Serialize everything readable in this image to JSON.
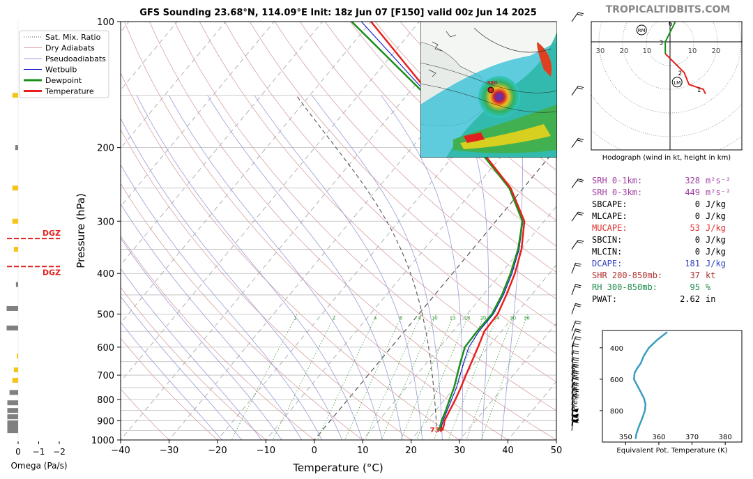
{
  "header": {
    "title": "GFS Sounding 23.68°N, 114.09°E Init: 18z Jun 07 [F150] valid 00z Jun 14 2025",
    "brand": "TROPICALTIDBITS.COM"
  },
  "legend": {
    "items": [
      {
        "label": "Sat. Mix. Ratio",
        "color": "#555555",
        "style": "dotted"
      },
      {
        "label": "Dry Adiabats",
        "color": "#d9a0a0",
        "style": "solid"
      },
      {
        "label": "Pseudoadiabats",
        "color": "#9a9ad8",
        "style": "solid"
      },
      {
        "label": "Wetbulb",
        "color": "#0000cc",
        "style": "solid"
      },
      {
        "label": "Dewpoint",
        "color": "#1a8f1a",
        "style": "bold"
      },
      {
        "label": "Temperature",
        "color": "#e8201c",
        "style": "bold"
      }
    ]
  },
  "colors": {
    "temperature": "#e8201c",
    "dewpoint": "#1a8f1a",
    "wetbulb": "#0000cc",
    "dry_adiabat": "#d9a0a0",
    "moist_adiabat": "#9a9ad8",
    "mixing_ratio": "#3a9a3a",
    "isotherm": "#999999",
    "theta_e": "#3a9cbf",
    "srh": "#a040a0",
    "mucape": "#e03030",
    "dcape": "#3040c0",
    "shear": "#b03030",
    "rh": "#1a8a4a",
    "omega_bar": "#808080",
    "omega_highlight": "#f5c518"
  },
  "surface_temp_label": "73F",
  "dgz_label": "DGZ",
  "map_inset": {
    "marker_label": "980"
  },
  "chart_data": [
    {
      "type": "line",
      "name": "skew-t",
      "xlabel": "Temperature (°C)",
      "ylabel": "Pressure (hPa)",
      "xlim": [
        -40,
        50
      ],
      "ylim": [
        1000,
        100
      ],
      "y_scale": "log",
      "x_ticks": [
        -40,
        -30,
        -20,
        -10,
        0,
        10,
        20,
        30,
        40,
        50
      ],
      "y_ticks": [
        100,
        200,
        300,
        400,
        500,
        600,
        700,
        800,
        900,
        1000
      ],
      "mixing_ratio_labels": [
        1,
        2,
        4,
        6,
        8,
        10,
        13,
        16,
        20,
        24,
        30,
        36
      ],
      "series": [
        {
          "name": "Temperature",
          "p": [
            950,
            925,
            900,
            850,
            800,
            750,
            700,
            650,
            600,
            550,
            500,
            450,
            400,
            350,
            300,
            250,
            200,
            150,
            100
          ],
          "t": [
            24.8,
            24.3,
            23.6,
            22.9,
            22.2,
            21.3,
            20.2,
            19.1,
            17.9,
            16.5,
            16.3,
            14.8,
            12.9,
            10.1,
            5.9,
            -2.6,
            -16.1,
            -35,
            -60
          ]
        },
        {
          "name": "Dewpoint",
          "p": [
            950,
            925,
            900,
            850,
            800,
            750,
            700,
            650,
            600,
            550,
            500,
            450,
            400,
            350,
            300,
            250,
            200,
            150,
            100
          ],
          "t": [
            24.3,
            23.6,
            23.0,
            22.1,
            21.0,
            19.9,
            18.4,
            16.8,
            15.2,
            15.0,
            15.1,
            13.9,
            12.0,
            9.4,
            5.5,
            -2.9,
            -16.5,
            -36,
            -64
          ]
        },
        {
          "name": "Wetbulb",
          "p": [
            950,
            925,
            900,
            850,
            800,
            750,
            700,
            650,
            600,
            550,
            500,
            450,
            400,
            350,
            300,
            250,
            200,
            150,
            100
          ],
          "t": [
            24.5,
            23.9,
            23.3,
            22.4,
            21.4,
            20.4,
            19.0,
            17.5,
            16.0,
            15.4,
            15.4,
            14.2,
            12.3,
            9.6,
            5.6,
            -2.8,
            -16.3,
            -35.5,
            -62
          ]
        }
      ],
      "dgz": [
        330,
        385
      ]
    },
    {
      "type": "line",
      "name": "hodograph",
      "caption": "Hodograph (wind in kt, height in km)",
      "range_labels": [
        30,
        20,
        10,
        10,
        20
      ],
      "u": [
        15,
        14,
        8,
        6,
        -2,
        -2,
        1,
        2,
        2,
        0,
        -4,
        -10
      ],
      "v": [
        -22,
        -20,
        -18,
        -13,
        -5,
        0,
        6,
        8,
        12,
        14,
        18,
        24
      ],
      "height_labels": [
        "1",
        "2",
        "3",
        "6",
        "9"
      ],
      "storm_labels": [
        "RM",
        "LM"
      ]
    },
    {
      "type": "line",
      "name": "theta-e",
      "xlabel": "Equivalent Pot. Temperature (K)",
      "ylabel": "Pressure (hPa)",
      "x_ticks": [
        350,
        360,
        370,
        380
      ],
      "y_ticks": [
        400,
        600,
        800
      ],
      "theta_e": [
        362.5,
        359.5,
        357,
        355.5,
        354.5,
        353.5,
        352.7,
        352.5,
        353.5,
        354.5,
        355.5,
        356,
        355.8,
        355,
        354,
        353.2,
        353
      ],
      "p": [
        300,
        350,
        400,
        450,
        500,
        530,
        560,
        600,
        640,
        680,
        720,
        760,
        800,
        850,
        900,
        950,
        980
      ]
    },
    {
      "type": "bar",
      "name": "omega",
      "xlabel": "Omega (Pa/s)",
      "x_ticks": [
        "0",
        "−1",
        "−2"
      ],
      "p": [
        150,
        200,
        250,
        300,
        350,
        425,
        485,
        540,
        630,
        680,
        720,
        770,
        815,
        850,
        880,
        910,
        930,
        950
      ],
      "omega": [
        0.4,
        0.2,
        0.4,
        0.4,
        0.3,
        0.15,
        0.8,
        0.8,
        0.05,
        0.3,
        0.4,
        0.6,
        0.75,
        0.75,
        0.75,
        0.75,
        0.75,
        0.75
      ],
      "highlight": [
        true,
        false,
        true,
        true,
        true,
        false,
        false,
        false,
        true,
        true,
        true,
        false,
        false,
        false,
        false,
        false,
        false,
        false
      ]
    }
  ],
  "indices": [
    {
      "label": "SRH 0-1km:",
      "value": "328",
      "unit": "m²s⁻²",
      "color": "#a040a0"
    },
    {
      "label": "SRH 0-3km:",
      "value": "449",
      "unit": "m²s⁻²",
      "color": "#a040a0"
    },
    {
      "label": "SBCAPE:",
      "value": "0",
      "unit": "J/kg",
      "color": "#000000"
    },
    {
      "label": "MLCAPE:",
      "value": "0",
      "unit": "J/kg",
      "color": "#000000"
    },
    {
      "label": "MUCAPE:",
      "value": "53",
      "unit": "J/kg",
      "color": "#e03030"
    },
    {
      "label": "SBCIN:",
      "value": "0",
      "unit": "J/kg",
      "color": "#000000"
    },
    {
      "label": "MLCIN:",
      "value": "0",
      "unit": "J/kg",
      "color": "#000000"
    },
    {
      "label": "DCAPE:",
      "value": "181",
      "unit": "J/kg",
      "color": "#3040c0"
    },
    {
      "label": "SHR 200-850mb:",
      "value": "37",
      "unit": "kt",
      "color": "#b03030"
    },
    {
      "label": "RH 300-850mb:",
      "value": "95",
      "unit": "%",
      "color": "#1a8a4a"
    },
    {
      "label": "PWAT:",
      "value": "2.62",
      "unit": "in",
      "color": "#000000"
    }
  ]
}
